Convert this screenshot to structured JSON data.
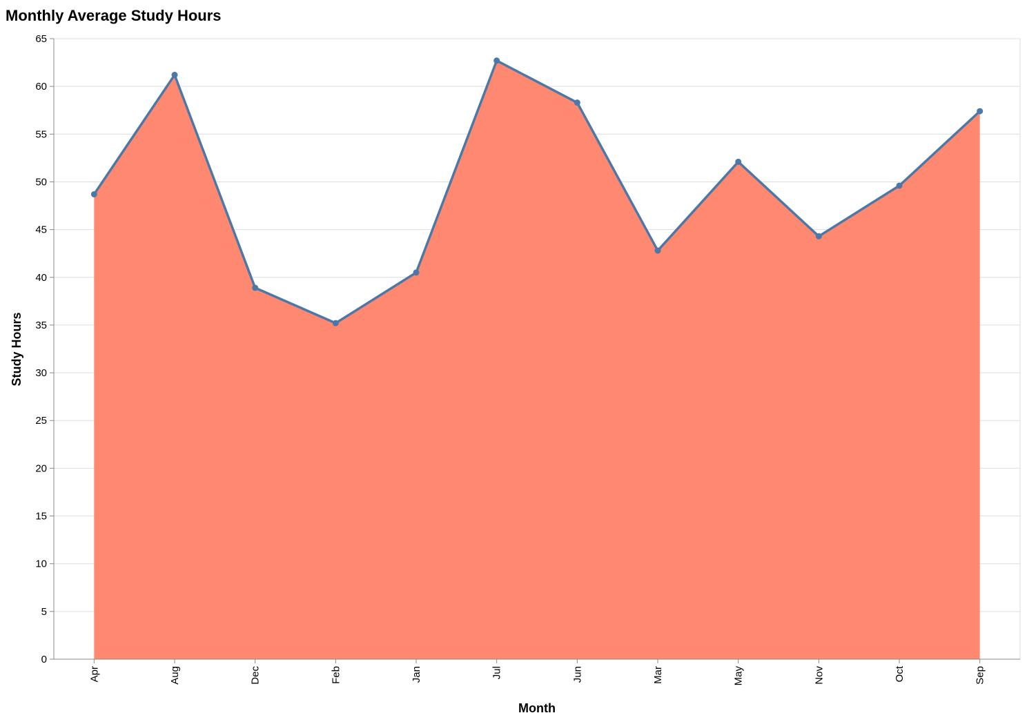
{
  "chart_data": {
    "type": "area",
    "title": "Monthly Average Study Hours",
    "xlabel": "Month",
    "ylabel": "Study Hours",
    "categories": [
      "Apr",
      "Aug",
      "Dec",
      "Feb",
      "Jan",
      "Jul",
      "Jun",
      "Mar",
      "May",
      "Nov",
      "Oct",
      "Sep"
    ],
    "values": [
      48.7,
      61.2,
      38.9,
      35.2,
      40.5,
      62.7,
      58.3,
      42.8,
      52.1,
      44.3,
      49.6,
      57.4
    ],
    "ylim": [
      0,
      65
    ],
    "yticks": [
      0,
      5,
      10,
      15,
      20,
      25,
      30,
      35,
      40,
      45,
      50,
      55,
      60,
      65
    ],
    "grid": true,
    "colors": {
      "area": "#ff8870",
      "line": "#4c78a8",
      "point": "#4c78a8",
      "grid": "#dddddd",
      "axis": "#888888"
    }
  }
}
